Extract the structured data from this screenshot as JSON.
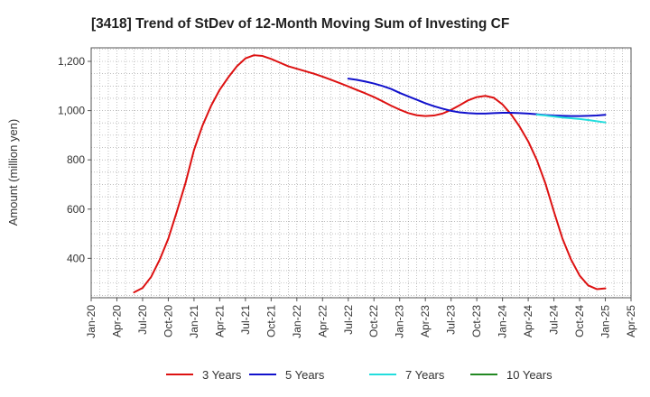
{
  "chart_data": {
    "type": "line",
    "title": "[3418]  Trend of StDev of 12-Month Moving Sum of Investing CF",
    "xlabel": "",
    "ylabel": "Amount (million yen)",
    "ylim": [
      240,
      1255
    ],
    "yticks": [
      400,
      600,
      800,
      1000,
      1200
    ],
    "yticklabels": [
      "400",
      "600",
      "800",
      "1,000",
      "1,200"
    ],
    "xlim": [
      "2020-01",
      "2025-04"
    ],
    "xticklabels": [
      "Jan-20",
      "Apr-20",
      "Jul-20",
      "Oct-20",
      "Jan-21",
      "Apr-21",
      "Jul-21",
      "Oct-21",
      "Jan-22",
      "Apr-22",
      "Jul-22",
      "Oct-22",
      "Jan-23",
      "Apr-23",
      "Jul-23",
      "Oct-23",
      "Jan-24",
      "Apr-24",
      "Jul-24",
      "Oct-24",
      "Jan-25",
      "Apr-25"
    ],
    "grid": true,
    "legend_position": "bottom",
    "series": [
      {
        "name": "3 Years",
        "color": "#dd1111",
        "x": [
          "2020-06",
          "2020-07",
          "2020-08",
          "2020-09",
          "2020-10",
          "2020-11",
          "2020-12",
          "2021-01",
          "2021-02",
          "2021-03",
          "2021-04",
          "2021-05",
          "2021-06",
          "2021-07",
          "2021-08",
          "2021-09",
          "2021-10",
          "2021-11",
          "2021-12",
          "2022-01",
          "2022-02",
          "2022-03",
          "2022-04",
          "2022-05",
          "2022-06",
          "2022-07",
          "2022-08",
          "2022-09",
          "2022-10",
          "2022-11",
          "2022-12",
          "2023-01",
          "2023-02",
          "2023-03",
          "2023-04",
          "2023-05",
          "2023-06",
          "2023-07",
          "2023-08",
          "2023-09",
          "2023-10",
          "2023-11",
          "2023-12",
          "2024-01",
          "2024-02",
          "2024-03",
          "2024-04",
          "2024-05",
          "2024-06",
          "2024-07",
          "2024-08",
          "2024-09",
          "2024-10",
          "2024-11",
          "2024-12",
          "2025-01"
        ],
        "values": [
          262,
          280,
          325,
          395,
          480,
          590,
          705,
          840,
          940,
          1020,
          1085,
          1135,
          1180,
          1212,
          1225,
          1222,
          1210,
          1195,
          1180,
          1170,
          1160,
          1150,
          1138,
          1125,
          1112,
          1098,
          1084,
          1070,
          1055,
          1038,
          1020,
          1004,
          990,
          981,
          978,
          980,
          988,
          1003,
          1022,
          1042,
          1055,
          1060,
          1052,
          1025,
          985,
          935,
          875,
          800,
          705,
          590,
          480,
          395,
          330,
          290,
          275,
          278
        ]
      },
      {
        "name": "5 Years",
        "color": "#1111cc",
        "x": [
          "2022-07",
          "2022-08",
          "2022-09",
          "2022-10",
          "2022-11",
          "2022-12",
          "2023-01",
          "2023-02",
          "2023-03",
          "2023-04",
          "2023-05",
          "2023-06",
          "2023-07",
          "2023-08",
          "2023-09",
          "2023-10",
          "2023-11",
          "2023-12",
          "2024-01",
          "2024-02",
          "2024-03",
          "2024-04",
          "2024-05",
          "2024-06",
          "2024-07",
          "2024-08",
          "2024-09",
          "2024-10",
          "2024-11",
          "2024-12",
          "2025-01"
        ],
        "values": [
          1130,
          1125,
          1118,
          1110,
          1100,
          1088,
          1072,
          1058,
          1044,
          1030,
          1018,
          1008,
          999,
          993,
          990,
          988,
          988,
          990,
          991,
          991,
          990,
          988,
          985,
          982,
          980,
          979,
          978,
          978,
          979,
          980,
          983
        ]
      },
      {
        "name": "7 Years",
        "color": "#22dddd",
        "x": [
          "2024-05",
          "2024-06",
          "2024-07",
          "2024-08",
          "2024-09",
          "2024-10",
          "2024-11",
          "2024-12",
          "2025-01"
        ],
        "values": [
          984,
          980,
          976,
          972,
          969,
          966,
          962,
          957,
          952
        ]
      },
      {
        "name": "10 Years",
        "color": "#228822",
        "x": [],
        "values": []
      }
    ]
  }
}
